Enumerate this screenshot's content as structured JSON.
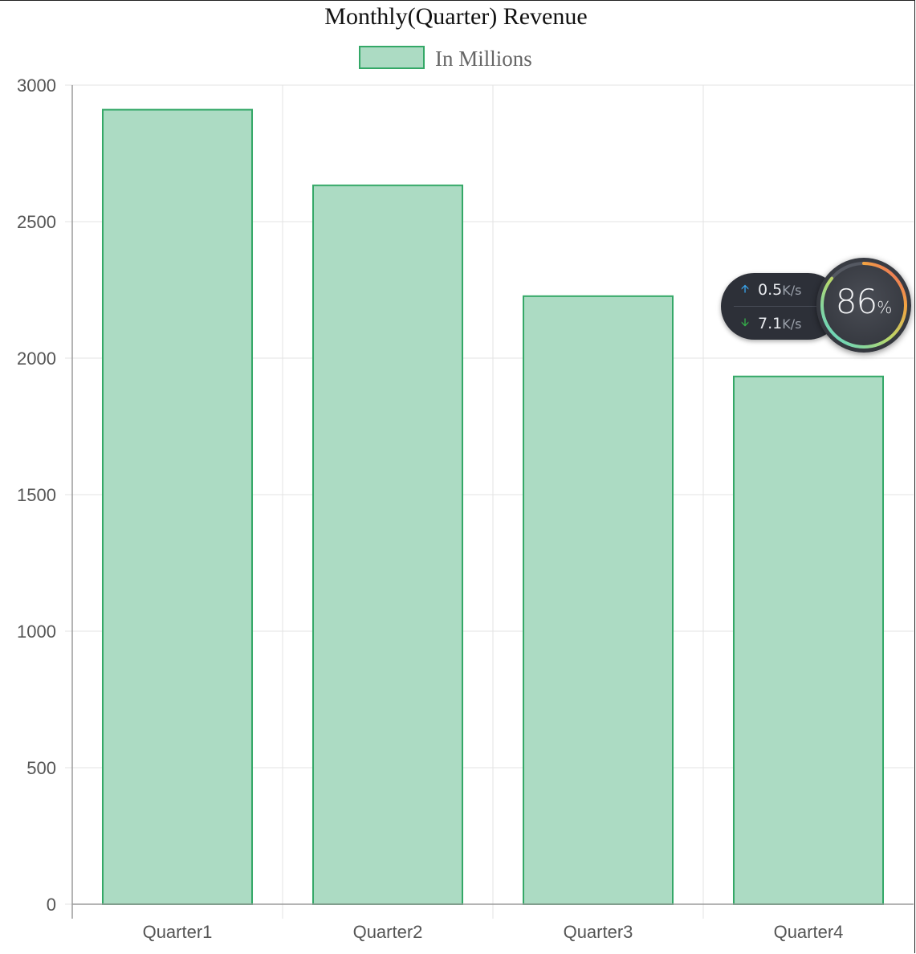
{
  "chart_data": {
    "type": "bar",
    "title": "Monthly(Quarter) Revenue",
    "categories": [
      "Quarter1",
      "Quarter2",
      "Quarter3",
      "Quarter4"
    ],
    "series": [
      {
        "name": "In Millions",
        "values": [
          2910,
          2633,
          2227,
          1933
        ]
      }
    ],
    "xlabel": "",
    "ylabel": "",
    "ylim": [
      0,
      3000
    ],
    "yticks": [
      0,
      500,
      1000,
      1500,
      2000,
      2500,
      3000
    ],
    "grid": true,
    "legend_position": "top-center",
    "colors": {
      "bar_fill": "#acdbc3",
      "bar_border": "#34a867",
      "grid": "#e3e3e3",
      "axis": "#9b9b9b"
    }
  },
  "network_widget": {
    "upload_speed": "0.5",
    "upload_unit": "K/s",
    "download_speed": "7.1",
    "download_unit": "K/s",
    "percent": "86",
    "percent_sign": "%",
    "percent_value": 86,
    "upload_icon": "arrow-up-icon",
    "download_icon": "arrow-down-icon"
  }
}
